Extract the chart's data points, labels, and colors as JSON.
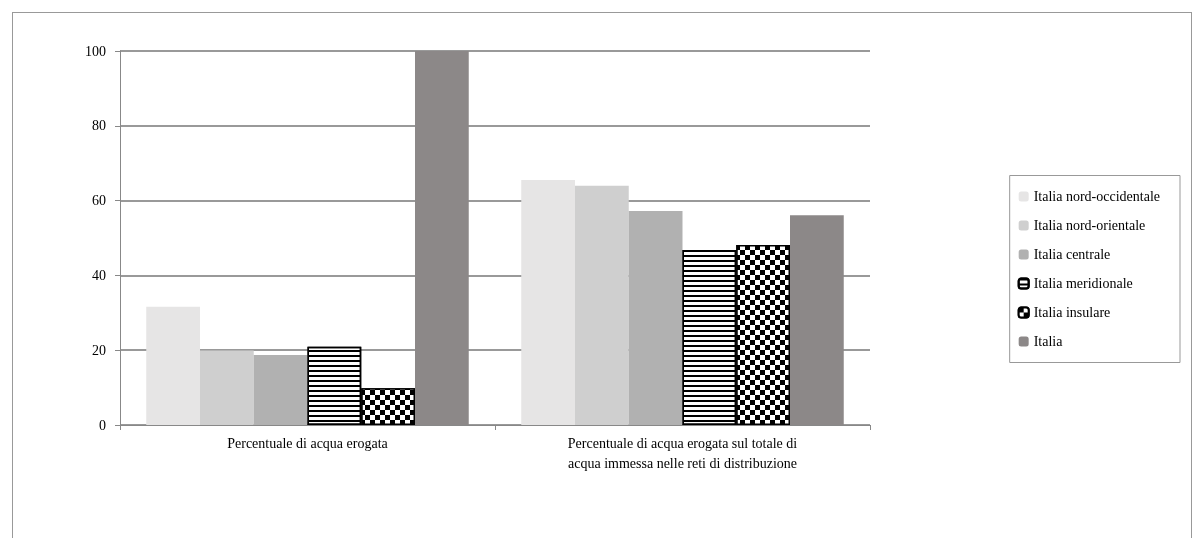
{
  "chart_data": {
    "type": "bar",
    "categories": [
      "Percentuale di acqua erogata",
      "Percentuale di acqua erogata sul totale di\nacqua immessa nelle reti di distribuzione"
    ],
    "series": [
      {
        "name": "Italia nord-occidentale",
        "color": "#e6e5e5",
        "values": [
          31.6,
          65.5
        ]
      },
      {
        "name": "Italia nord-orientale",
        "color": "#cfcfcf",
        "values": [
          19.9,
          64
        ]
      },
      {
        "name": "Italia centrale",
        "color": "#b1b1b1",
        "values": [
          18.7,
          57.2
        ]
      },
      {
        "name": "Italia meridionale",
        "color": "#ffffff",
        "values": [
          20.9,
          46.8
        ]
      },
      {
        "name": "Italia insulare",
        "color": "#000000",
        "values": [
          9.8,
          48.1
        ]
      },
      {
        "name": "Italia",
        "color": "#8c8888",
        "values": [
          100,
          56.1
        ]
      }
    ],
    "ylim": [
      0,
      100
    ],
    "yticks": [
      0,
      20,
      40,
      60,
      80,
      100
    ],
    "grid": "y",
    "legend": "right"
  }
}
